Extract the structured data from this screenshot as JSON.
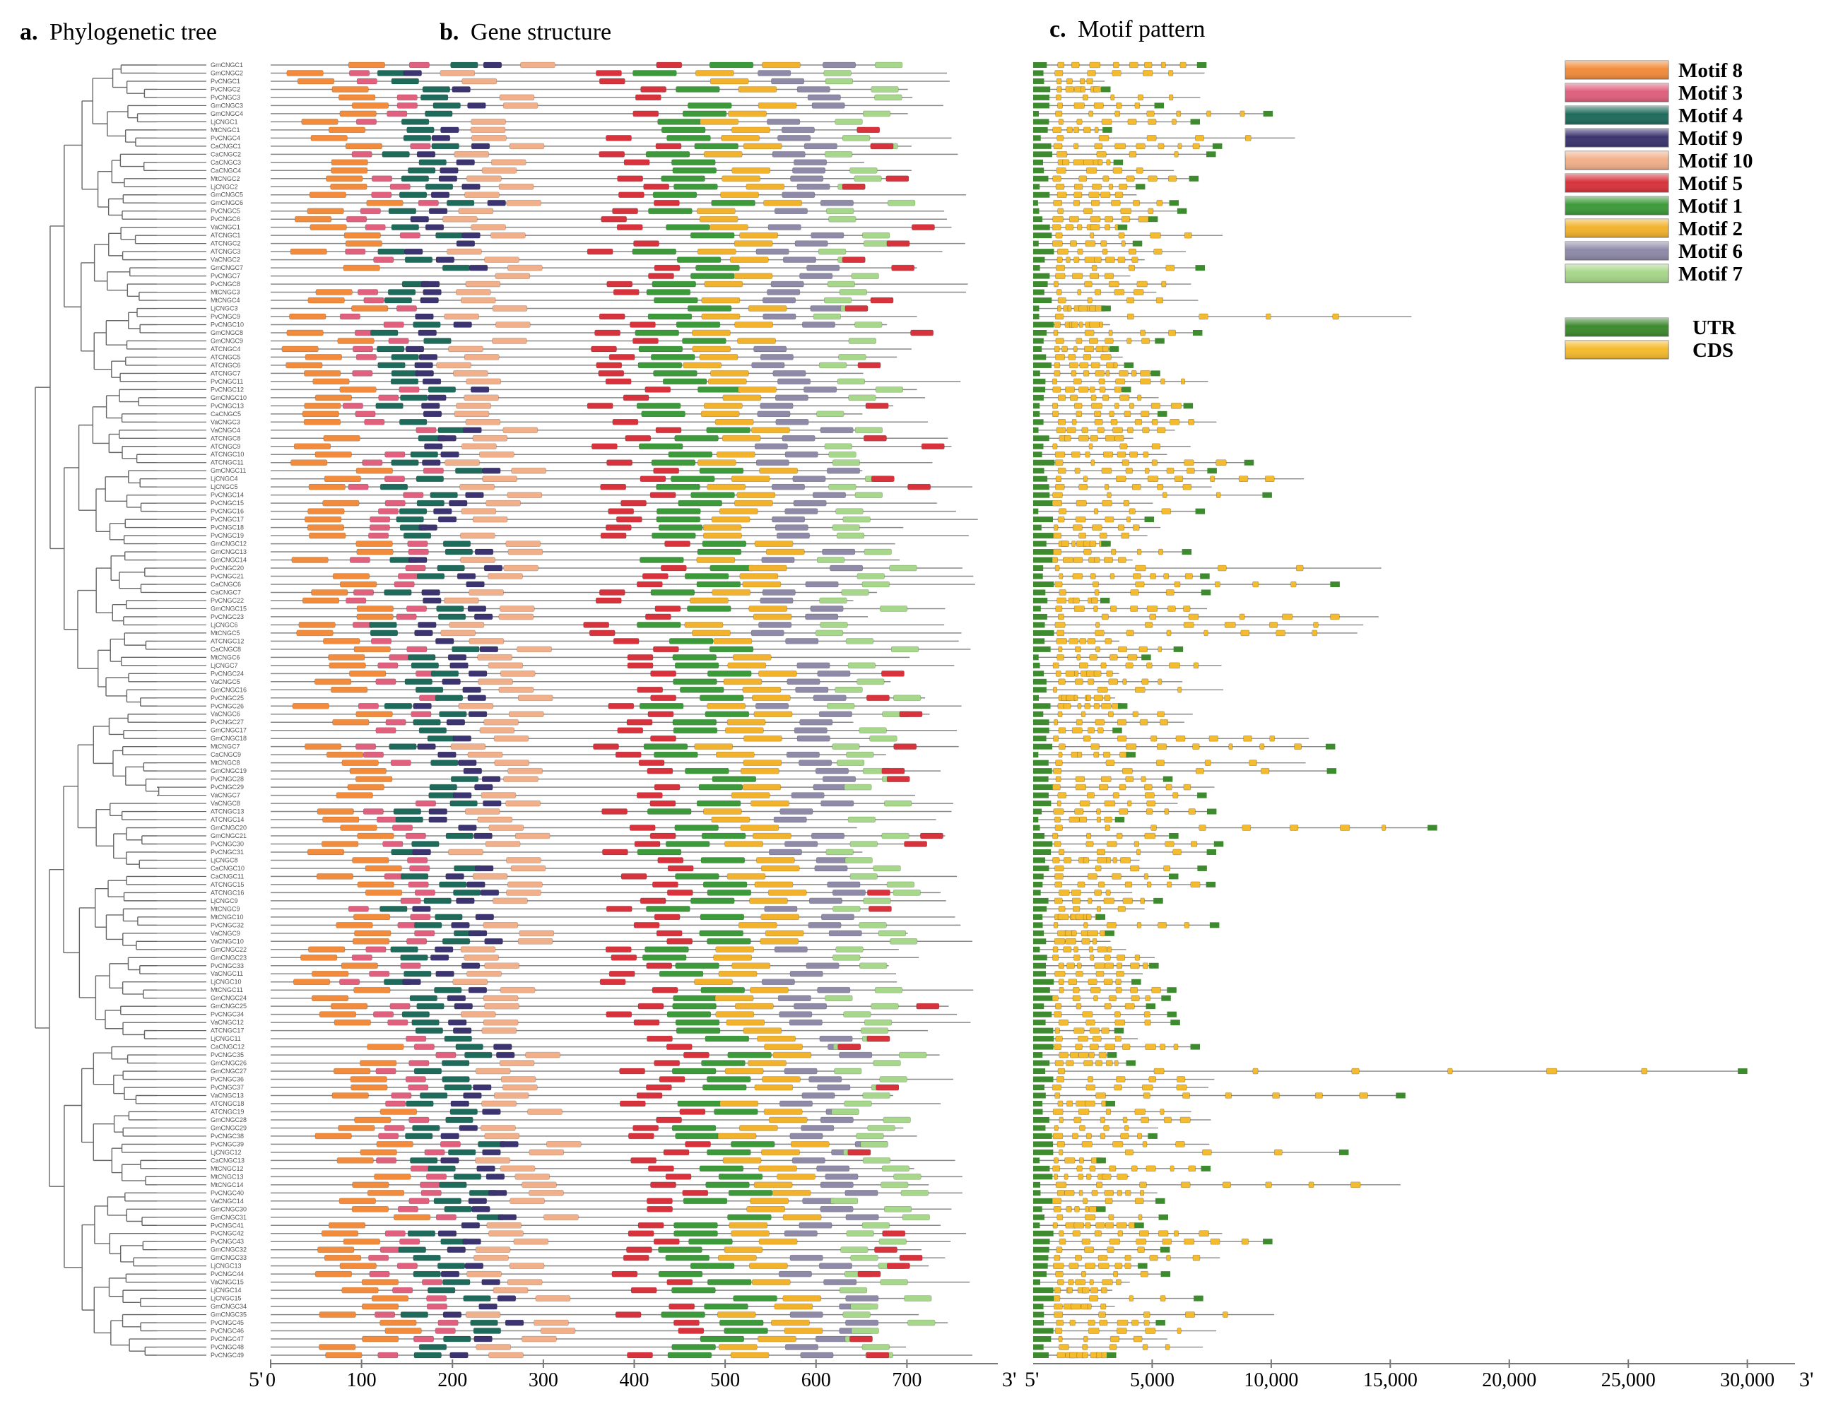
{
  "panels": {
    "a": {
      "letter": "a.",
      "title": "Phylogenetic tree"
    },
    "b": {
      "letter": "b.",
      "title": "Gene structure"
    },
    "c": {
      "letter": "c.",
      "title": "Motif pattern"
    }
  },
  "legend": {
    "motifs": [
      {
        "label": "Motif 8",
        "color": "#f28c3c"
      },
      {
        "label": "Motif 3",
        "color": "#e0607e"
      },
      {
        "label": "Motif 4",
        "color": "#1e6b5c"
      },
      {
        "label": "Motif 9",
        "color": "#3c3470"
      },
      {
        "label": "Motif 10",
        "color": "#f2b08a"
      },
      {
        "label": "Motif 5",
        "color": "#d8333c"
      },
      {
        "label": "Motif 1",
        "color": "#3d9a3a"
      },
      {
        "label": "Motif 2",
        "color": "#f2b22c"
      },
      {
        "label": "Motif 6",
        "color": "#8e8aa8"
      },
      {
        "label": "Motif 7",
        "color": "#a7d78a"
      }
    ],
    "structure": [
      {
        "label": "UTR",
        "color": "#3d8a2f"
      },
      {
        "label": "CDS",
        "color": "#f5bb2e"
      }
    ]
  },
  "chart_data": [
    {
      "type": "motif-map",
      "title": "Gene structure",
      "axis": {
        "start_label": "5'",
        "end_label": "3'",
        "ticks": [
          "0",
          "100",
          "200",
          "300",
          "400",
          "500",
          "600",
          "700"
        ],
        "tick_values": [
          0,
          100,
          200,
          300,
          400,
          500,
          600,
          700
        ],
        "range": [
          0,
          800
        ]
      },
      "motif_order": [
        "Motif 8",
        "Motif 3",
        "Motif 4",
        "Motif 9",
        "Motif 10",
        "Motif 5",
        "Motif 1",
        "Motif 2",
        "Motif 6",
        "Motif 7"
      ]
    },
    {
      "type": "exon-map",
      "title": "Motif pattern",
      "axis": {
        "start_label": "5'",
        "end_label": "3'",
        "ticks": [
          "5,000",
          "10,000",
          "15,000",
          "20,000",
          "25,000",
          "30,000"
        ],
        "tick_values": [
          5000,
          10000,
          15000,
          20000,
          25000,
          30000
        ],
        "range": [
          0,
          32000
        ]
      }
    }
  ],
  "genes": [
    "GmCNGC1",
    "GmCNGC2",
    "PvCNGC1",
    "PvCNGC2",
    "PvCNGC3",
    "GmCNGC3",
    "GmCNGC4",
    "LjCNGC1",
    "MtCNGC1",
    "PvCNGC4",
    "CaCNGC1",
    "CaCNGC2",
    "CaCNGC3",
    "CaCNGC4",
    "MtCNGC2",
    "LjCNGC2",
    "GmCNGC5",
    "GmCNGC6",
    "PvCNGC5",
    "PvCNGC6",
    "VaCNGC1",
    "ATCNGC1",
    "ATCNGC2",
    "ATCNGC3",
    "VaCNGC2",
    "GmCNGC7",
    "PvCNGC7",
    "PvCNGC8",
    "MtCNGC3",
    "MtCNGC4",
    "LjCNGC3",
    "PvCNGC9",
    "PvCNGC10",
    "GmCNGC8",
    "GmCNGC9",
    "ATCNGC4",
    "ATCNGC5",
    "ATCNGC6",
    "ATCNGC7",
    "PvCNGC11",
    "PvCNGC12",
    "GmCNGC10",
    "PvCNGC13",
    "CaCNGC5",
    "VaCNGC3",
    "VaCNGC4",
    "ATCNGC8",
    "ATCNGC9",
    "ATCNGC10",
    "ATCNGC11",
    "GmCNGC11",
    "LjCNGC4",
    "LjCNGC5",
    "PvCNGC14",
    "PvCNGC15",
    "PvCNGC16",
    "PvCNGC17",
    "PvCNGC18",
    "PvCNGC19",
    "GmCNGC12",
    "GmCNGC13",
    "GmCNGC14",
    "PvCNGC20",
    "PvCNGC21",
    "CaCNGC6",
    "CaCNGC7",
    "PvCNGC22",
    "GmCNGC15",
    "PvCNGC23",
    "LjCNGC6",
    "MtCNGC5",
    "ATCNGC12",
    "CaCNGC8",
    "MtCNGC6",
    "LjCNGC7",
    "PvCNGC24",
    "VaCNGC5",
    "GmCNGC16",
    "PvCNGC25",
    "PvCNGC26",
    "VaCNGC6",
    "PvCNGC27",
    "GmCNGC17",
    "GmCNGC18",
    "MtCNGC7",
    "CaCNGC9",
    "MtCNGC8",
    "GmCNGC19",
    "PvCNGC28",
    "PvCNGC29",
    "VaCNGC7",
    "VaCNGC8",
    "ATCNGC13",
    "ATCNGC14",
    "GmCNGC20",
    "GmCNGC21",
    "PvCNGC30",
    "PvCNGC31",
    "LjCNGC8",
    "CaCNGC10",
    "CaCNGC11",
    "ATCNGC15",
    "ATCNGC16",
    "LjCNGC9",
    "MtCNGC9",
    "MtCNGC10",
    "PvCNGC32",
    "VaCNGC9",
    "VaCNGC10",
    "GmCNGC22",
    "GmCNGC23",
    "PvCNGC33",
    "VaCNGC11",
    "LjCNGC10",
    "MtCNGC11",
    "GmCNGC24",
    "GmCNGC25",
    "PvCNGC34",
    "VaCNGC12",
    "ATCNGC17",
    "LjCNGC11",
    "CaCNGC12",
    "PvCNGC35",
    "GmCNGC26",
    "GmCNGC27",
    "PvCNGC36",
    "PvCNGC37",
    "VaCNGC13",
    "ATCNGC18",
    "ATCNGC19",
    "GmCNGC28",
    "GmCNGC29",
    "PvCNGC38",
    "PvCNGC39",
    "LjCNGC12",
    "CaCNGC13",
    "MtCNGC12",
    "MtCNGC13",
    "MtCNGC14",
    "PvCNGC40",
    "VaCNGC14",
    "GmCNGC30",
    "GmCNGC31",
    "PvCNGC41",
    "PvCNGC42",
    "PvCNGC43",
    "GmCNGC32",
    "GmCNGC33",
    "LjCNGC13",
    "PvCNGC44",
    "VaCNGC15",
    "LjCNGC14",
    "LjCNGC15",
    "GmCNGC34",
    "GmCNGC35",
    "PvCNGC45",
    "PvCNGC46",
    "PvCNGC47",
    "PvCNGC48",
    "PvCNGC49"
  ]
}
